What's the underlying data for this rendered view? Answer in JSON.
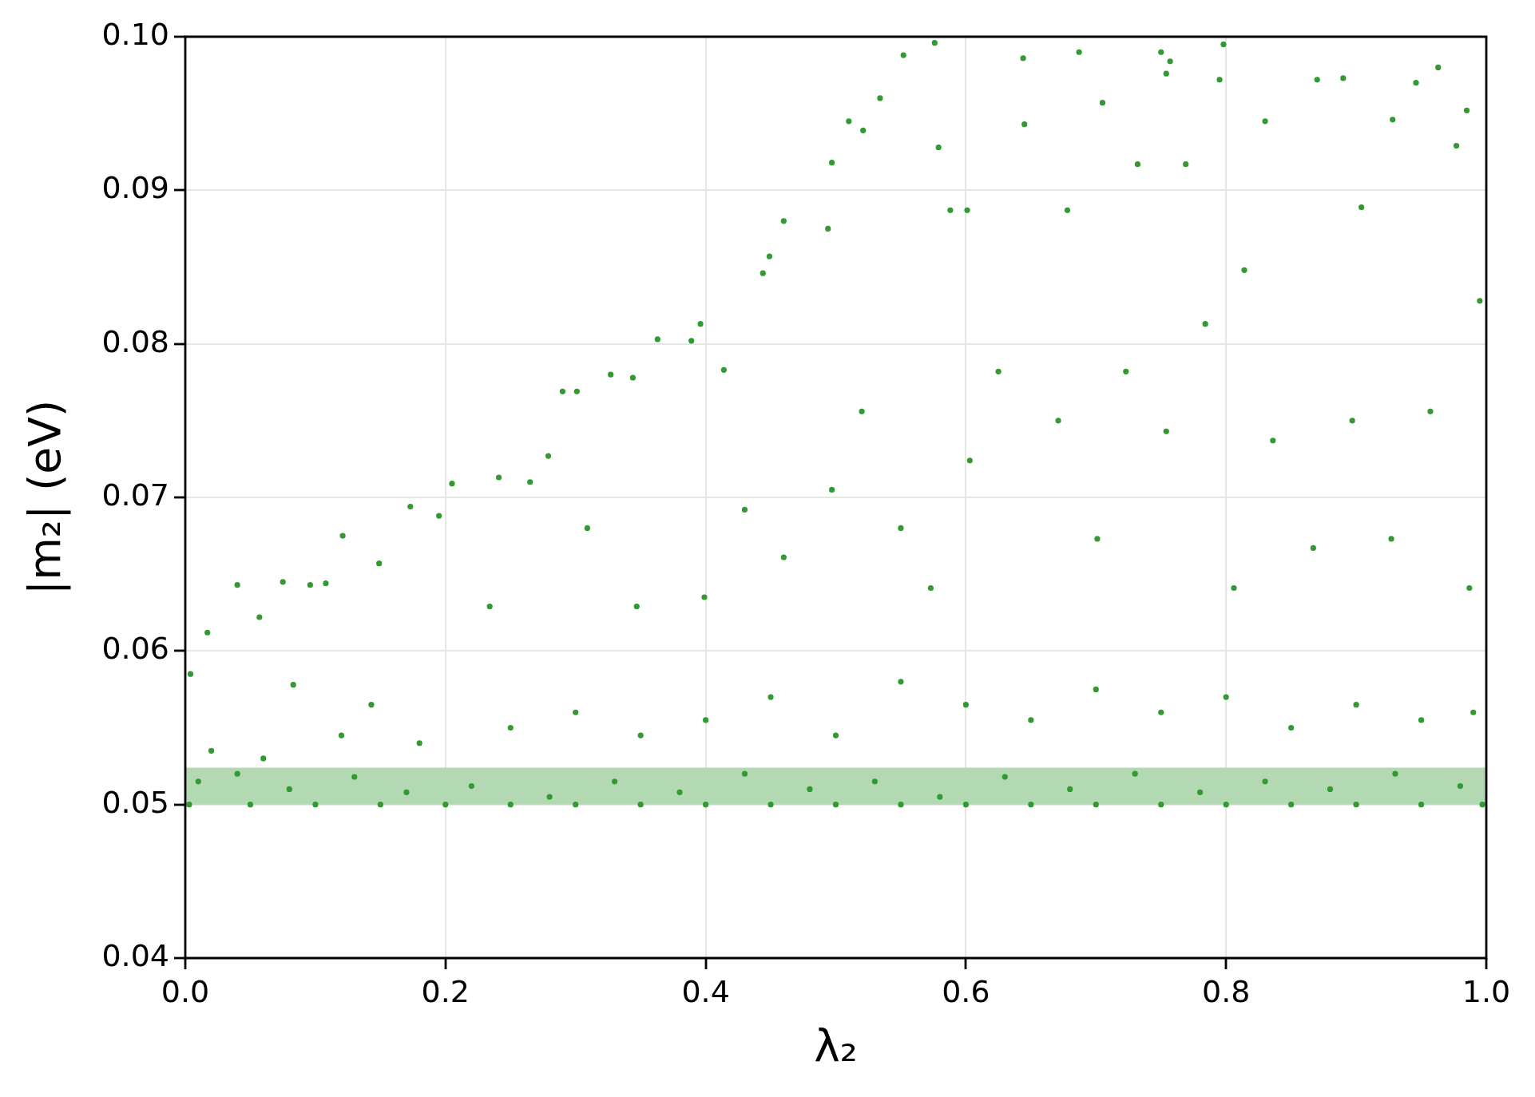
{
  "chart_data": {
    "type": "scatter",
    "xlabel": "λ₂",
    "ylabel": "|m₂| (eV)",
    "x": [
      0.004,
      0.017,
      0.04,
      0.057,
      0.075,
      0.096,
      0.108,
      0.121,
      0.149,
      0.173,
      0.195,
      0.205,
      0.241,
      0.265,
      0.279,
      0.29,
      0.301,
      0.327,
      0.344,
      0.363,
      0.389,
      0.396,
      0.414,
      0.444,
      0.449,
      0.46,
      0.494,
      0.497,
      0.51,
      0.521,
      0.534,
      0.552,
      0.576,
      0.579,
      0.588,
      0.601,
      0.644,
      0.645,
      0.678,
      0.687,
      0.705,
      0.732,
      0.75,
      0.754,
      0.757,
      0.769,
      0.795,
      0.798,
      0.814,
      0.83,
      0.87,
      0.89,
      0.904,
      0.928,
      0.946,
      0.963,
      0.977,
      0.985,
      0.995,
      0.143,
      0.083,
      0.234,
      0.309,
      0.347,
      0.399,
      0.43,
      0.46,
      0.497,
      0.52,
      0.55,
      0.573,
      0.603,
      0.625,
      0.671,
      0.701,
      0.723,
      0.754,
      0.784,
      0.806,
      0.836,
      0.867,
      0.897,
      0.927,
      0.957,
      0.987,
      0.02,
      0.06,
      0.12,
      0.18,
      0.25,
      0.3,
      0.35,
      0.4,
      0.45,
      0.5,
      0.55,
      0.6,
      0.65,
      0.7,
      0.75,
      0.8,
      0.85,
      0.9,
      0.95,
      0.99,
      0.01,
      0.04,
      0.08,
      0.13,
      0.17,
      0.22,
      0.28,
      0.33,
      0.38,
      0.43,
      0.48,
      0.53,
      0.58,
      0.63,
      0.68,
      0.73,
      0.78,
      0.83,
      0.88,
      0.93,
      0.98,
      0.003,
      0.05,
      0.1,
      0.15,
      0.2,
      0.25,
      0.3,
      0.35,
      0.4,
      0.45,
      0.5,
      0.55,
      0.6,
      0.65,
      0.7,
      0.75,
      0.8,
      0.85,
      0.9,
      0.95,
      0.997
    ],
    "values": [
      0.0585,
      0.0612,
      0.0643,
      0.0622,
      0.0645,
      0.0643,
      0.0644,
      0.0675,
      0.0657,
      0.0694,
      0.0688,
      0.0709,
      0.0713,
      0.071,
      0.0727,
      0.0769,
      0.0769,
      0.078,
      0.0778,
      0.0803,
      0.0802,
      0.0813,
      0.0783,
      0.0846,
      0.0857,
      0.088,
      0.0875,
      0.0918,
      0.0945,
      0.0939,
      0.096,
      0.0988,
      0.0996,
      0.0928,
      0.0887,
      0.0887,
      0.0986,
      0.0943,
      0.0887,
      0.099,
      0.0957,
      0.0917,
      0.099,
      0.0976,
      0.0984,
      0.0917,
      0.0972,
      0.0995,
      0.0848,
      0.0945,
      0.0972,
      0.0973,
      0.0889,
      0.0946,
      0.097,
      0.098,
      0.0929,
      0.0952,
      0.0828,
      0.0565,
      0.0578,
      0.0629,
      0.068,
      0.0629,
      0.0635,
      0.0692,
      0.0661,
      0.0705,
      0.0756,
      0.068,
      0.0641,
      0.0724,
      0.0782,
      0.075,
      0.0673,
      0.0782,
      0.0743,
      0.0813,
      0.0641,
      0.0737,
      0.0667,
      0.075,
      0.0673,
      0.0756,
      0.0641,
      0.0535,
      0.053,
      0.0545,
      0.054,
      0.055,
      0.056,
      0.0545,
      0.0555,
      0.057,
      0.0545,
      0.058,
      0.0565,
      0.0555,
      0.0575,
      0.056,
      0.057,
      0.055,
      0.0565,
      0.0555,
      0.056,
      0.0515,
      0.052,
      0.051,
      0.0518,
      0.0508,
      0.0512,
      0.0505,
      0.0515,
      0.0508,
      0.052,
      0.051,
      0.0515,
      0.0505,
      0.0518,
      0.051,
      0.052,
      0.0508,
      0.0515,
      0.051,
      0.052,
      0.0512,
      0.05,
      0.05,
      0.05,
      0.05,
      0.05,
      0.05,
      0.05,
      0.05,
      0.05,
      0.05,
      0.05,
      0.05,
      0.05,
      0.05,
      0.05,
      0.05,
      0.05,
      0.05,
      0.05,
      0.05,
      0.05
    ],
    "color": "#339933",
    "marker": "circle",
    "xlim": [
      0,
      1
    ],
    "xticks": [
      {
        "value": 0,
        "label": "0.0"
      },
      0.2,
      0.4,
      0.6,
      0.8,
      {
        "value": 1,
        "label": "1.0"
      }
    ],
    "ylim": [
      0.04,
      0.1
    ],
    "yticks": [
      0.04,
      0.05,
      0.06,
      0.07,
      0.08,
      0.09,
      {
        "value": 0.1,
        "label": "0.10"
      }
    ],
    "bands": [
      {
        "axis": "y",
        "from": 0.05,
        "to": 0.0524,
        "color": "#b2d9b2"
      }
    ],
    "grid": true,
    "legend": false
  }
}
